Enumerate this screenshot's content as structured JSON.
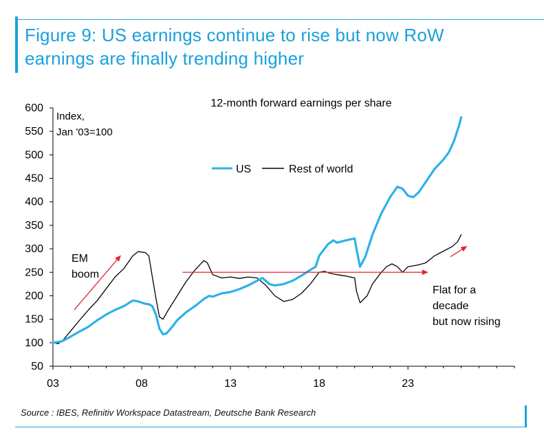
{
  "header": {
    "title_line1": "Figure 9: US earnings continue to rise but now RoW",
    "title_line2": "earnings are finally trending higher"
  },
  "footer": {
    "source": "Source : IBES, Refinitiv Workspace Datastream, Deutsche Bank Research"
  },
  "colors": {
    "accent": "#1aa0dc",
    "us": "#2bb2e8",
    "row": "#000000",
    "arrow": "#e0252b"
  },
  "chart_data": {
    "type": "line",
    "title": "12-month forward earnings per share",
    "ylabel_line1": "Index,",
    "ylabel_line2": "Jan '03=100",
    "xlabel": "",
    "ylim": [
      50,
      600
    ],
    "xlim": [
      2003,
      2029
    ],
    "yticks": [
      50,
      100,
      150,
      200,
      250,
      300,
      350,
      400,
      450,
      500,
      550,
      600
    ],
    "ytick_labels": [
      "50",
      "100",
      "150",
      "200",
      "250",
      "300",
      "350",
      "400",
      "450",
      "500",
      "550",
      "600"
    ],
    "xticks": [
      2003,
      2008,
      2013,
      2018,
      2023
    ],
    "xtick_labels": [
      "03",
      "08",
      "13",
      "18",
      "23"
    ],
    "legend": {
      "position": "top-center",
      "entries": [
        "US",
        "Rest of world"
      ]
    },
    "series": [
      {
        "name": "US",
        "points": [
          [
            2003,
            100
          ],
          [
            2003.5,
            103
          ],
          [
            2004,
            113
          ],
          [
            2004.5,
            124
          ],
          [
            2005,
            134
          ],
          [
            2005.5,
            148
          ],
          [
            2006,
            160
          ],
          [
            2006.5,
            170
          ],
          [
            2007,
            178
          ],
          [
            2007.5,
            190
          ],
          [
            2007.8,
            188
          ],
          [
            2008.2,
            183
          ],
          [
            2008.4,
            182
          ],
          [
            2008.6,
            178
          ],
          [
            2008.8,
            160
          ],
          [
            2009.0,
            130
          ],
          [
            2009.2,
            118
          ],
          [
            2009.4,
            120
          ],
          [
            2009.7,
            133
          ],
          [
            2010,
            148
          ],
          [
            2010.5,
            165
          ],
          [
            2011,
            178
          ],
          [
            2011.5,
            193
          ],
          [
            2011.8,
            200
          ],
          [
            2012,
            198
          ],
          [
            2012.5,
            205
          ],
          [
            2013,
            208
          ],
          [
            2013.5,
            214
          ],
          [
            2014,
            222
          ],
          [
            2014.5,
            232
          ],
          [
            2014.8,
            238
          ],
          [
            2015.2,
            225
          ],
          [
            2015.5,
            222
          ],
          [
            2016,
            225
          ],
          [
            2016.5,
            232
          ],
          [
            2017,
            243
          ],
          [
            2017.5,
            255
          ],
          [
            2017.8,
            262
          ],
          [
            2018,
            285
          ],
          [
            2018.5,
            310
          ],
          [
            2018.8,
            318
          ],
          [
            2019,
            313
          ],
          [
            2019.5,
            318
          ],
          [
            2020,
            322
          ],
          [
            2020.1,
            300
          ],
          [
            2020.3,
            262
          ],
          [
            2020.6,
            283
          ],
          [
            2021,
            330
          ],
          [
            2021.5,
            375
          ],
          [
            2022,
            410
          ],
          [
            2022.4,
            432
          ],
          [
            2022.7,
            428
          ],
          [
            2023,
            413
          ],
          [
            2023.3,
            410
          ],
          [
            2023.6,
            420
          ],
          [
            2024,
            442
          ],
          [
            2024.5,
            470
          ],
          [
            2025,
            490
          ],
          [
            2025.3,
            505
          ],
          [
            2025.6,
            530
          ],
          [
            2025.9,
            565
          ],
          [
            2026.0,
            580
          ]
        ]
      },
      {
        "name": "Rest of world",
        "points": [
          [
            2003,
            100
          ],
          [
            2003.3,
            98
          ],
          [
            2003.6,
            107
          ],
          [
            2004,
            125
          ],
          [
            2004.5,
            148
          ],
          [
            2005,
            170
          ],
          [
            2005.5,
            190
          ],
          [
            2006,
            215
          ],
          [
            2006.5,
            240
          ],
          [
            2007,
            258
          ],
          [
            2007.5,
            285
          ],
          [
            2007.8,
            294
          ],
          [
            2008.2,
            292
          ],
          [
            2008.4,
            285
          ],
          [
            2008.6,
            240
          ],
          [
            2008.8,
            195
          ],
          [
            2009,
            155
          ],
          [
            2009.2,
            150
          ],
          [
            2009.5,
            170
          ],
          [
            2010,
            200
          ],
          [
            2010.5,
            230
          ],
          [
            2011,
            255
          ],
          [
            2011.5,
            275
          ],
          [
            2011.7,
            270
          ],
          [
            2012,
            245
          ],
          [
            2012.5,
            238
          ],
          [
            2013,
            240
          ],
          [
            2013.5,
            237
          ],
          [
            2014,
            240
          ],
          [
            2014.5,
            238
          ],
          [
            2015,
            222
          ],
          [
            2015.5,
            200
          ],
          [
            2016,
            188
          ],
          [
            2016.5,
            192
          ],
          [
            2017,
            205
          ],
          [
            2017.5,
            225
          ],
          [
            2018,
            250
          ],
          [
            2018.3,
            252
          ],
          [
            2018.6,
            248
          ],
          [
            2019,
            245
          ],
          [
            2019.5,
            242
          ],
          [
            2020,
            238
          ],
          [
            2020.1,
            210
          ],
          [
            2020.3,
            185
          ],
          [
            2020.7,
            200
          ],
          [
            2021,
            225
          ],
          [
            2021.5,
            250
          ],
          [
            2021.8,
            262
          ],
          [
            2022.1,
            268
          ],
          [
            2022.4,
            262
          ],
          [
            2022.7,
            250
          ],
          [
            2023,
            262
          ],
          [
            2023.5,
            265
          ],
          [
            2024,
            270
          ],
          [
            2024.5,
            285
          ],
          [
            2025,
            295
          ],
          [
            2025.5,
            305
          ],
          [
            2025.8,
            315
          ],
          [
            2026,
            330
          ]
        ]
      }
    ],
    "annotations": [
      {
        "id": "em_line1",
        "text": "EM"
      },
      {
        "id": "em_line2",
        "text": "boom"
      },
      {
        "id": "flat_line1",
        "text": "Flat for a"
      },
      {
        "id": "flat_line2",
        "text": "decade"
      },
      {
        "id": "flat_line3",
        "text": "but now rising"
      }
    ],
    "arrows": [
      {
        "name": "em-boom-arrow",
        "from": [
          2004.2,
          170
        ],
        "to": [
          2006.8,
          285
        ]
      },
      {
        "name": "flat-decade-arrow",
        "from": [
          2010.3,
          250
        ],
        "to": [
          2024.1,
          250
        ]
      },
      {
        "name": "now-rising-arrow",
        "from": [
          2025.4,
          283
        ],
        "to": [
          2026.3,
          305
        ]
      }
    ]
  }
}
